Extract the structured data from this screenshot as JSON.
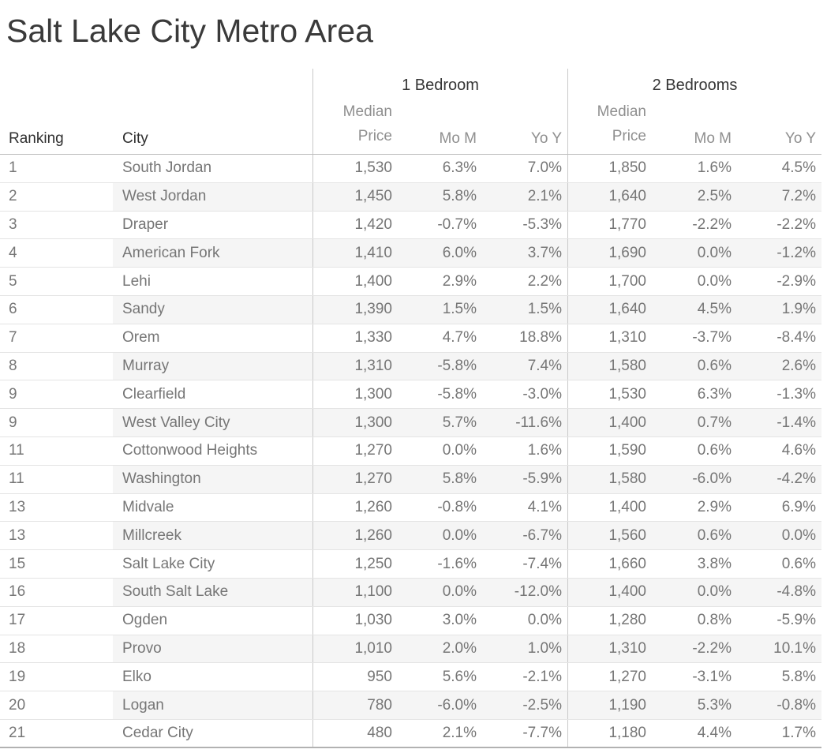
{
  "title": "Salt Lake City Metro Area",
  "header": {
    "ranking": "Ranking",
    "city": "City",
    "groups": [
      {
        "label": "1 Bedroom"
      },
      {
        "label": "2 Bedrooms"
      }
    ],
    "sub": {
      "median_l1": "Median",
      "median_l2": "Price",
      "mom": "Mo M",
      "yoy": "Yo Y"
    }
  },
  "colors": {
    "title_text": "#3a3a3a",
    "group_header_text": "#363636",
    "column_header_text": "#2f2f2f",
    "sub_header_text": "#8f8f8f",
    "data_text": "#767676",
    "row_band": "#f5f5f5",
    "row_separator": "#e4e4e4",
    "vertical_divider": "#c9c9c9",
    "header_underline": "#bdbdbd",
    "bottom_border": "#b2b2b2"
  },
  "chart_data": {
    "type": "table",
    "title": "Salt Lake City Metro Area",
    "column_groups": [
      "1 Bedroom",
      "2 Bedrooms"
    ],
    "columns": [
      "Ranking",
      "City",
      "1 Bedroom Median Price",
      "1 Bedroom Mo M",
      "1 Bedroom Yo Y",
      "2 Bedrooms Median Price",
      "2 Bedrooms Mo M",
      "2 Bedrooms Yo Y"
    ],
    "rows": [
      [
        "1",
        "South Jordan",
        "1,530",
        "6.3%",
        "7.0%",
        "1,850",
        "1.6%",
        "4.5%"
      ],
      [
        "2",
        "West Jordan",
        "1,450",
        "5.8%",
        "2.1%",
        "1,640",
        "2.5%",
        "7.2%"
      ],
      [
        "3",
        "Draper",
        "1,420",
        "-0.7%",
        "-5.3%",
        "1,770",
        "-2.2%",
        "-2.2%"
      ],
      [
        "4",
        "American Fork",
        "1,410",
        "6.0%",
        "3.7%",
        "1,690",
        "0.0%",
        "-1.2%"
      ],
      [
        "5",
        "Lehi",
        "1,400",
        "2.9%",
        "2.2%",
        "1,700",
        "0.0%",
        "-2.9%"
      ],
      [
        "6",
        "Sandy",
        "1,390",
        "1.5%",
        "1.5%",
        "1,640",
        "4.5%",
        "1.9%"
      ],
      [
        "7",
        "Orem",
        "1,330",
        "4.7%",
        "18.8%",
        "1,310",
        "-3.7%",
        "-8.4%"
      ],
      [
        "8",
        "Murray",
        "1,310",
        "-5.8%",
        "7.4%",
        "1,580",
        "0.6%",
        "2.6%"
      ],
      [
        "9",
        "Clearfield",
        "1,300",
        "-5.8%",
        "-3.0%",
        "1,530",
        "6.3%",
        "-1.3%"
      ],
      [
        "9",
        "West Valley City",
        "1,300",
        "5.7%",
        "-11.6%",
        "1,400",
        "0.7%",
        "-1.4%"
      ],
      [
        "11",
        "Cottonwood Heights",
        "1,270",
        "0.0%",
        "1.6%",
        "1,590",
        "0.6%",
        "4.6%"
      ],
      [
        "11",
        "Washington",
        "1,270",
        "5.8%",
        "-5.9%",
        "1,580",
        "-6.0%",
        "-4.2%"
      ],
      [
        "13",
        "Midvale",
        "1,260",
        "-0.8%",
        "4.1%",
        "1,400",
        "2.9%",
        "6.9%"
      ],
      [
        "13",
        "Millcreek",
        "1,260",
        "0.0%",
        "-6.7%",
        "1,560",
        "0.6%",
        "0.0%"
      ],
      [
        "15",
        "Salt Lake City",
        "1,250",
        "-1.6%",
        "-7.4%",
        "1,660",
        "3.8%",
        "0.6%"
      ],
      [
        "16",
        "South Salt Lake",
        "1,100",
        "0.0%",
        "-12.0%",
        "1,400",
        "0.0%",
        "-4.8%"
      ],
      [
        "17",
        "Ogden",
        "1,030",
        "3.0%",
        "0.0%",
        "1,280",
        "0.8%",
        "-5.9%"
      ],
      [
        "18",
        "Provo",
        "1,010",
        "2.0%",
        "1.0%",
        "1,310",
        "-2.2%",
        "10.1%"
      ],
      [
        "19",
        "Elko",
        "950",
        "5.6%",
        "-2.1%",
        "1,270",
        "-3.1%",
        "5.8%"
      ],
      [
        "20",
        "Logan",
        "780",
        "-6.0%",
        "-2.5%",
        "1,190",
        "5.3%",
        "-0.8%"
      ],
      [
        "21",
        "Cedar City",
        "480",
        "2.1%",
        "-7.7%",
        "1,180",
        "4.4%",
        "1.7%"
      ]
    ]
  }
}
